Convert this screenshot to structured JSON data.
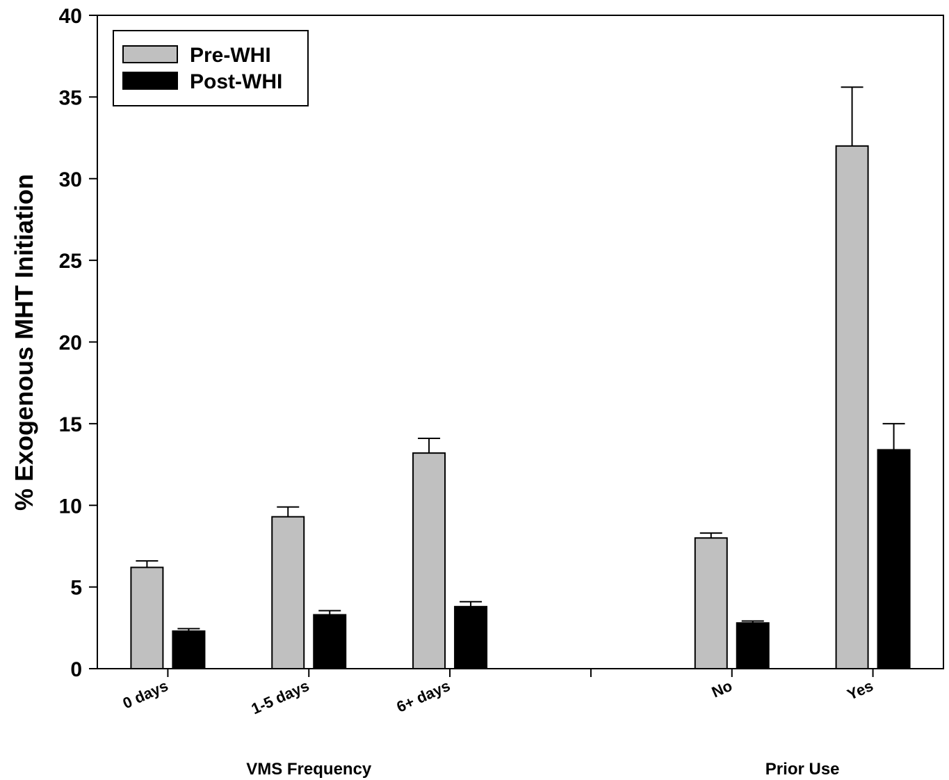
{
  "chart_data": {
    "type": "bar",
    "ylabel": "% Exogenous MHT Initiation",
    "ylim": [
      0,
      40
    ],
    "yticks": [
      0,
      5,
      10,
      15,
      20,
      25,
      30,
      35,
      40
    ],
    "grid": false,
    "legend_position": "top-left",
    "categories": [
      "0 days",
      "1-5 days",
      "6+ days",
      "No",
      "Yes"
    ],
    "groups": [
      {
        "label": "VMS Frequency",
        "categories": [
          "0 days",
          "1-5 days",
          "6+ days"
        ]
      },
      {
        "label": "Prior Use",
        "categories": [
          "No",
          "Yes"
        ]
      }
    ],
    "series": [
      {
        "name": "Pre-WHI",
        "color": "#c0c0c0",
        "values": [
          6.2,
          9.3,
          13.2,
          8.0,
          32.0
        ],
        "error": [
          0.4,
          0.6,
          0.9,
          0.3,
          3.6
        ]
      },
      {
        "name": "Post-WHI",
        "color": "#000000",
        "values": [
          2.3,
          3.3,
          3.8,
          2.8,
          13.4
        ],
        "error": [
          0.15,
          0.25,
          0.3,
          0.12,
          1.6
        ]
      }
    ]
  }
}
